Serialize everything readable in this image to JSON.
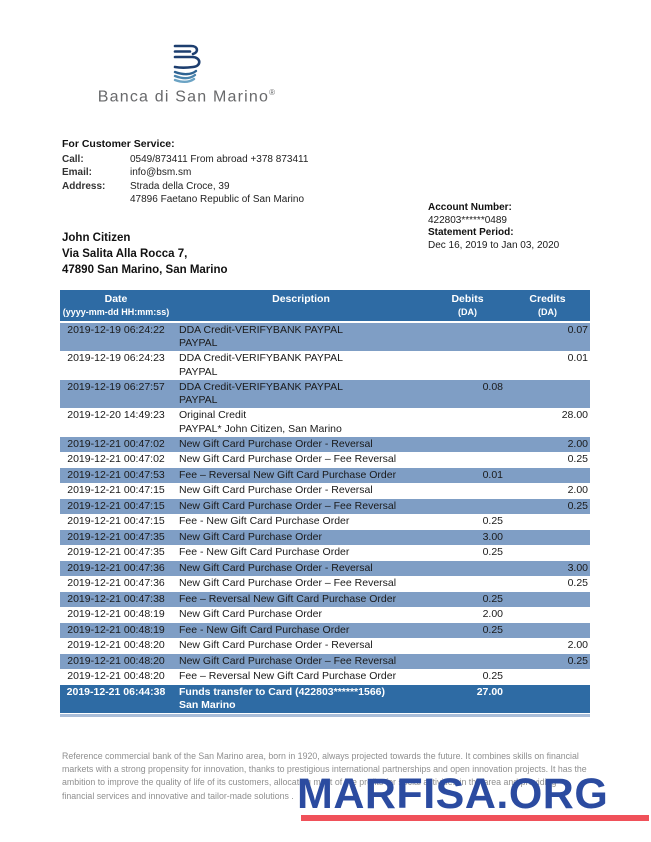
{
  "logo": {
    "brand": "Banca di San Marino",
    "registered": "®",
    "navy": "#1d3e6f",
    "blue_mid": "#2e6392",
    "blue_light": "#5b94bb"
  },
  "customer_service": {
    "heading": "For Customer Service:",
    "call_label": "Call:",
    "call_value": "0549/873411 From abroad +378 873411",
    "email_label": "Email:",
    "email_value": "info@bsm.sm",
    "address_label": "Address:",
    "address_line1": "Strada della Croce, 39",
    "address_line2": "47896 Faetano Republic of San Marino"
  },
  "account": {
    "number_label": "Account Number:",
    "number": "422803******0489",
    "period_label": "Statement Period:",
    "period": "Dec 16, 2019 to Jan 03, 2020"
  },
  "customer": {
    "name": "John Citizen",
    "address_line1": "Via Salita Alla Rocca 7,",
    "address_line2": "47890 San Marino, San Marino"
  },
  "table": {
    "headers": {
      "date": "Date",
      "date_sub": "(yyyy-mm-dd HH:mm:ss)",
      "description": "Description",
      "debits": "Debits",
      "debits_sub": "(DA)",
      "credits": "Credits",
      "credits_sub": "(DA)"
    },
    "rows": [
      {
        "date": "2019-12-19 06:24:22",
        "desc": "DDA Credit-VERIFYBANK PAYPAL",
        "desc2": "PAYPAL",
        "debit": "",
        "credit": "0.07"
      },
      {
        "date": "2019-12-19 06:24:23",
        "desc": "DDA Credit-VERIFYBANK PAYPAL",
        "desc2": "PAYPAL",
        "debit": "",
        "credit": "0.01"
      },
      {
        "date": "2019-12-19 06:27:57",
        "desc": "DDA Credit-VERIFYBANK PAYPAL",
        "desc2": "PAYPAL",
        "debit": "0.08",
        "credit": ""
      },
      {
        "date": "2019-12-20 14:49:23",
        "desc": "Original Credit",
        "desc2": "PAYPAL* John Citizen, San Marino",
        "debit": "",
        "credit": "28.00"
      },
      {
        "date": "2019-12-21 00:47:02",
        "desc": "New Gift Card Purchase Order - Reversal",
        "debit": "",
        "credit": "2.00"
      },
      {
        "date": "2019-12-21 00:47:02",
        "desc": "New Gift Card Purchase Order – Fee Reversal",
        "debit": "",
        "credit": "0.25"
      },
      {
        "date": "2019-12-21 00:47:53",
        "desc": "Fee – Reversal New Gift Card Purchase Order",
        "debit": "0.01",
        "credit": ""
      },
      {
        "date": "2019-12-21 00:47:15",
        "desc": "New Gift Card Purchase Order - Reversal",
        "debit": "",
        "credit": "2.00"
      },
      {
        "date": "2019-12-21 00:47:15",
        "desc": "New Gift Card Purchase Order – Fee Reversal",
        "debit": "",
        "credit": "0.25"
      },
      {
        "date": "2019-12-21 00:47:15",
        "desc": "Fee - New Gift Card Purchase Order",
        "debit": "0.25",
        "credit": ""
      },
      {
        "date": "2019-12-21 00:47:35",
        "desc": "New Gift Card Purchase Order",
        "debit": "3.00",
        "credit": ""
      },
      {
        "date": "2019-12-21 00:47:35",
        "desc": "Fee - New Gift Card Purchase Order",
        "debit": "0.25",
        "credit": ""
      },
      {
        "date": "2019-12-21 00:47:36",
        "desc": "New Gift Card Purchase Order - Reversal",
        "debit": "",
        "credit": "3.00"
      },
      {
        "date": "2019-12-21 00:47:36",
        "desc": "New Gift Card Purchase Order – Fee Reversal",
        "debit": "",
        "credit": "0.25"
      },
      {
        "date": "2019-12-21 00:47:38",
        "desc": "Fee – Reversal New Gift Card Purchase Order",
        "debit": "0.25",
        "credit": ""
      },
      {
        "date": "2019-12-21 00:48:19",
        "desc": "New Gift Card Purchase Order",
        "debit": "2.00",
        "credit": ""
      },
      {
        "date": "2019-12-21 00:48:19",
        "desc": "Fee - New Gift Card Purchase Order",
        "debit": "0.25",
        "credit": ""
      },
      {
        "date": "2019-12-21 00:48:20",
        "desc": "New Gift Card Purchase Order - Reversal",
        "debit": "",
        "credit": "2.00"
      },
      {
        "date": "2019-12-21 00:48:20",
        "desc": "New Gift Card Purchase Order – Fee Reversal",
        "debit": "",
        "credit": "0.25"
      },
      {
        "date": "2019-12-21 00:48:20",
        "desc": "Fee – Reversal New Gift Card Purchase Order",
        "debit": "0.25",
        "credit": ""
      },
      {
        "date": "2019-12-21 06:44:38",
        "desc": "Funds transfer to Card (422803******1566)",
        "desc2": "San Marino",
        "debit": "27.00",
        "credit": "",
        "dark": true
      }
    ]
  },
  "footer": {
    "text": "Reference commercial bank of the San Marino area, born in 1920, always projected towards the future. It combines skills on financial markets with a strong propensity for innovation, thanks to prestigious international partnerships and open innovation projects. It has the ambition to improve the quality of life of its customers, allocating most of the profits for social activities in the area and providing financial services and innovative and tailor-made solutions ."
  },
  "watermark": {
    "text": "MARFISA.ORG",
    "text_color": "#2b4ba0",
    "underline_color": "#f0515a"
  },
  "colors": {
    "table_header_bg": "#2e6ba4",
    "row_blue_bg": "#7f9ec5",
    "row_dark_bg": "#2e6ba4",
    "table_bottom_strip": "#a9bdd8"
  }
}
